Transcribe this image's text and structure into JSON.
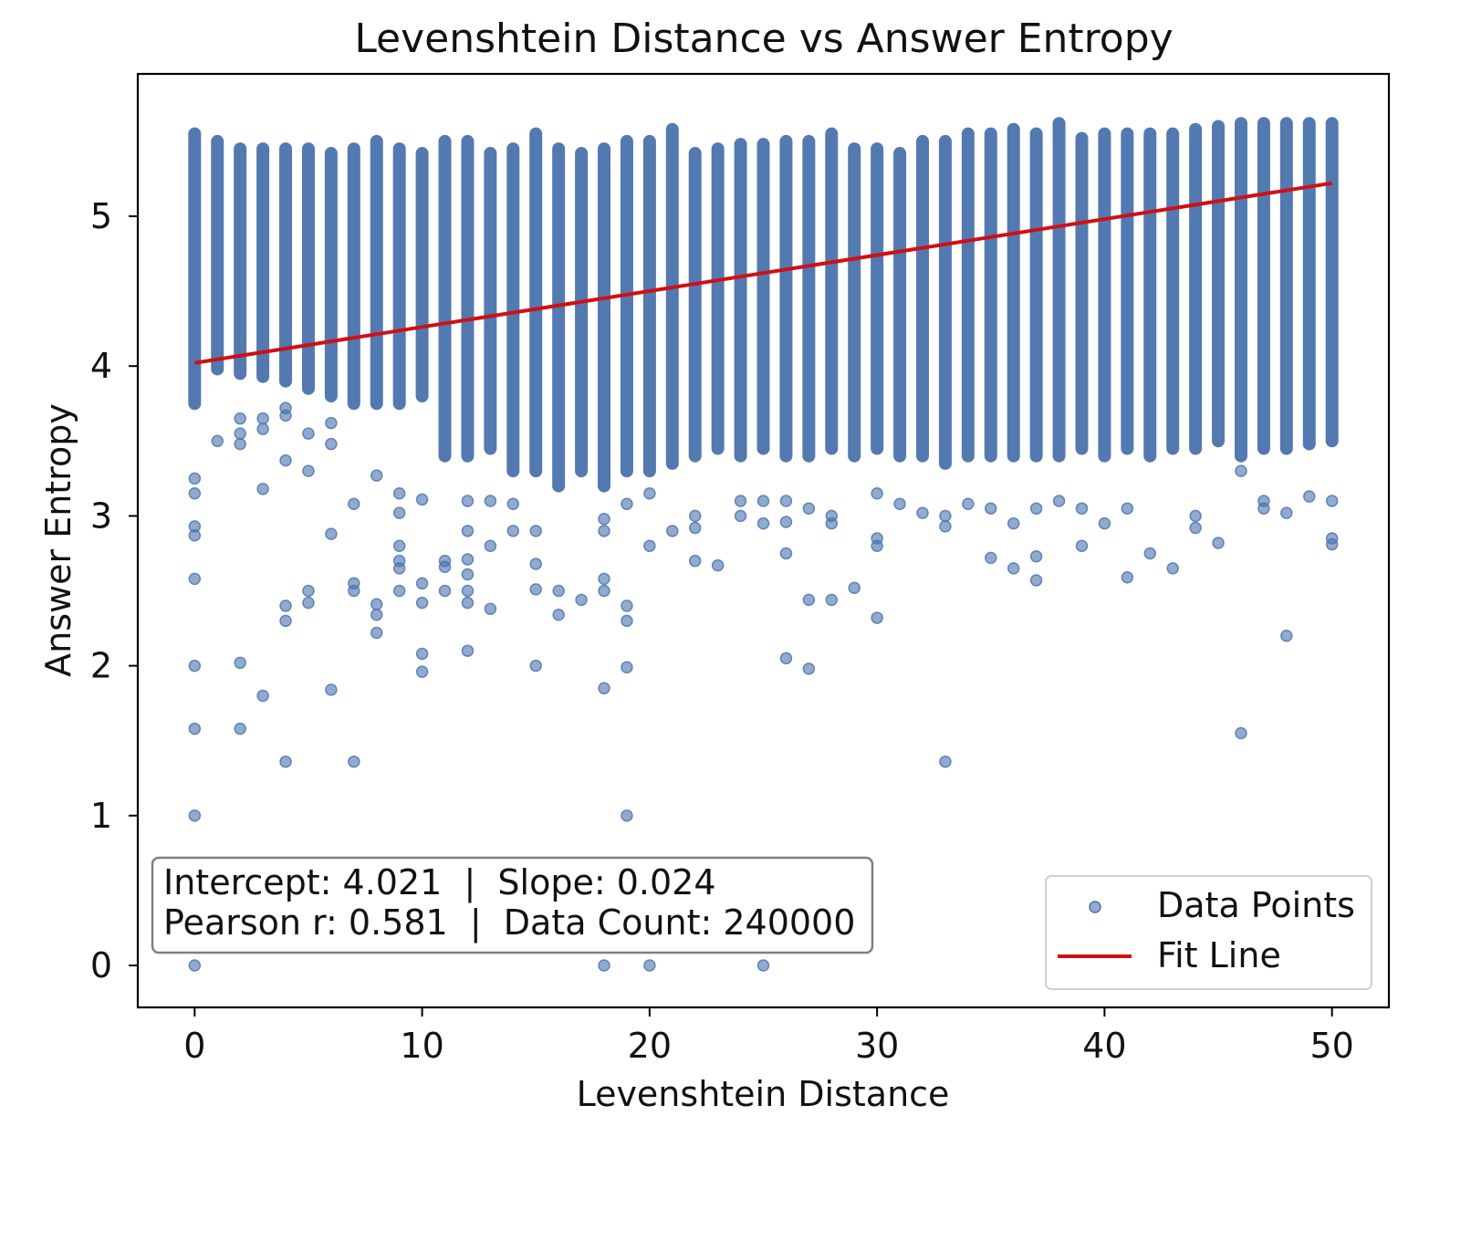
{
  "chart_data": {
    "type": "scatter",
    "title": "Levenshtein Distance vs Answer Entropy",
    "xlabel": "Levenshtein Distance",
    "ylabel": "Answer Entropy",
    "xlim": [
      -2.5,
      52.5
    ],
    "ylim": [
      -0.28,
      5.95
    ],
    "xticks": [
      0,
      10,
      20,
      30,
      40,
      50
    ],
    "yticks": [
      0,
      1,
      2,
      3,
      4,
      5
    ],
    "grid": false,
    "legend": {
      "placement": "bottom-right",
      "entries": [
        "Data Points",
        "Fit Line"
      ]
    },
    "annotation": {
      "line1": "Intercept: 4.021  |  Slope: 0.024",
      "line2": "Pearson r: 0.581  |  Data Count: 240000"
    },
    "fit_line": {
      "intercept": 4.021,
      "slope": 0.024,
      "x_range": [
        0,
        50
      ],
      "color": "#d10f12"
    },
    "point_color": "#4a72ad",
    "series": [
      {
        "name": "Data Points",
        "columns": [
          {
            "x": 0,
            "low": 3.75,
            "high": 5.55
          },
          {
            "x": 1,
            "low": 3.98,
            "high": 5.5
          },
          {
            "x": 2,
            "low": 3.95,
            "high": 5.45
          },
          {
            "x": 3,
            "low": 3.93,
            "high": 5.45
          },
          {
            "x": 4,
            "low": 3.9,
            "high": 5.45
          },
          {
            "x": 5,
            "low": 3.85,
            "high": 5.45
          },
          {
            "x": 6,
            "low": 3.8,
            "high": 5.42
          },
          {
            "x": 7,
            "low": 3.75,
            "high": 5.45
          },
          {
            "x": 8,
            "low": 3.75,
            "high": 5.5
          },
          {
            "x": 9,
            "low": 3.75,
            "high": 5.45
          },
          {
            "x": 10,
            "low": 3.8,
            "high": 5.42
          },
          {
            "x": 11,
            "low": 3.4,
            "high": 5.5
          },
          {
            "x": 12,
            "low": 3.4,
            "high": 5.5
          },
          {
            "x": 13,
            "low": 3.45,
            "high": 5.42
          },
          {
            "x": 14,
            "low": 3.3,
            "high": 5.45
          },
          {
            "x": 15,
            "low": 3.3,
            "high": 5.55
          },
          {
            "x": 16,
            "low": 3.2,
            "high": 5.45
          },
          {
            "x": 17,
            "low": 3.3,
            "high": 5.42
          },
          {
            "x": 18,
            "low": 3.2,
            "high": 5.45
          },
          {
            "x": 19,
            "low": 3.3,
            "high": 5.5
          },
          {
            "x": 20,
            "low": 3.3,
            "high": 5.5
          },
          {
            "x": 21,
            "low": 3.35,
            "high": 5.58
          },
          {
            "x": 22,
            "low": 3.4,
            "high": 5.42
          },
          {
            "x": 23,
            "low": 3.45,
            "high": 5.45
          },
          {
            "x": 24,
            "low": 3.4,
            "high": 5.48
          },
          {
            "x": 25,
            "low": 3.45,
            "high": 5.48
          },
          {
            "x": 26,
            "low": 3.4,
            "high": 5.5
          },
          {
            "x": 27,
            "low": 3.4,
            "high": 5.5
          },
          {
            "x": 28,
            "low": 3.45,
            "high": 5.55
          },
          {
            "x": 29,
            "low": 3.4,
            "high": 5.45
          },
          {
            "x": 30,
            "low": 3.45,
            "high": 5.45
          },
          {
            "x": 31,
            "low": 3.4,
            "high": 5.42
          },
          {
            "x": 32,
            "low": 3.4,
            "high": 5.5
          },
          {
            "x": 33,
            "low": 3.35,
            "high": 5.5
          },
          {
            "x": 34,
            "low": 3.4,
            "high": 5.55
          },
          {
            "x": 35,
            "low": 3.4,
            "high": 5.55
          },
          {
            "x": 36,
            "low": 3.4,
            "high": 5.58
          },
          {
            "x": 37,
            "low": 3.4,
            "high": 5.55
          },
          {
            "x": 38,
            "low": 3.4,
            "high": 5.62
          },
          {
            "x": 39,
            "low": 3.45,
            "high": 5.52
          },
          {
            "x": 40,
            "low": 3.4,
            "high": 5.55
          },
          {
            "x": 41,
            "low": 3.45,
            "high": 5.55
          },
          {
            "x": 42,
            "low": 3.4,
            "high": 5.55
          },
          {
            "x": 43,
            "low": 3.45,
            "high": 5.55
          },
          {
            "x": 44,
            "low": 3.45,
            "high": 5.58
          },
          {
            "x": 45,
            "low": 3.5,
            "high": 5.6
          },
          {
            "x": 46,
            "low": 3.4,
            "high": 5.62
          },
          {
            "x": 47,
            "low": 3.45,
            "high": 5.62
          },
          {
            "x": 48,
            "low": 3.45,
            "high": 5.62
          },
          {
            "x": 49,
            "low": 3.48,
            "high": 5.62
          },
          {
            "x": 50,
            "low": 3.5,
            "high": 5.62
          }
        ],
        "points": [
          [
            0,
            3.25
          ],
          [
            0,
            3.15
          ],
          [
            0,
            2.93
          ],
          [
            0,
            2.87
          ],
          [
            0,
            2.58
          ],
          [
            0,
            2.0
          ],
          [
            0,
            1.58
          ],
          [
            0,
            1.0
          ],
          [
            0,
            0.0
          ],
          [
            1,
            3.5
          ],
          [
            2,
            3.65
          ],
          [
            2,
            3.55
          ],
          [
            2,
            3.48
          ],
          [
            2,
            2.02
          ],
          [
            2,
            1.58
          ],
          [
            3,
            3.65
          ],
          [
            3,
            3.58
          ],
          [
            3,
            3.18
          ],
          [
            3,
            1.8
          ],
          [
            4,
            3.72
          ],
          [
            4,
            3.67
          ],
          [
            4,
            3.37
          ],
          [
            4,
            2.4
          ],
          [
            4,
            2.3
          ],
          [
            4,
            1.36
          ],
          [
            5,
            3.55
          ],
          [
            5,
            3.3
          ],
          [
            5,
            2.5
          ],
          [
            5,
            2.42
          ],
          [
            6,
            3.62
          ],
          [
            6,
            3.48
          ],
          [
            6,
            2.88
          ],
          [
            6,
            1.84
          ],
          [
            7,
            3.08
          ],
          [
            7,
            2.55
          ],
          [
            7,
            2.5
          ],
          [
            7,
            1.36
          ],
          [
            8,
            3.27
          ],
          [
            8,
            2.41
          ],
          [
            8,
            2.34
          ],
          [
            8,
            2.22
          ],
          [
            9,
            3.15
          ],
          [
            9,
            3.02
          ],
          [
            9,
            2.8
          ],
          [
            9,
            2.7
          ],
          [
            9,
            2.65
          ],
          [
            9,
            2.5
          ],
          [
            10,
            3.11
          ],
          [
            10,
            2.55
          ],
          [
            10,
            2.42
          ],
          [
            10,
            2.08
          ],
          [
            10,
            1.96
          ],
          [
            11,
            2.7
          ],
          [
            11,
            2.66
          ],
          [
            11,
            2.5
          ],
          [
            12,
            3.1
          ],
          [
            12,
            2.9
          ],
          [
            12,
            2.71
          ],
          [
            12,
            2.61
          ],
          [
            12,
            2.5
          ],
          [
            12,
            2.42
          ],
          [
            12,
            2.1
          ],
          [
            13,
            3.1
          ],
          [
            13,
            2.8
          ],
          [
            13,
            2.38
          ],
          [
            14,
            3.08
          ],
          [
            14,
            2.9
          ],
          [
            15,
            2.9
          ],
          [
            15,
            2.68
          ],
          [
            15,
            2.51
          ],
          [
            15,
            2.0
          ],
          [
            16,
            2.5
          ],
          [
            16,
            2.34
          ],
          [
            17,
            2.44
          ],
          [
            18,
            2.98
          ],
          [
            18,
            2.9
          ],
          [
            18,
            2.58
          ],
          [
            18,
            2.5
          ],
          [
            18,
            1.85
          ],
          [
            18,
            0.0
          ],
          [
            19,
            3.08
          ],
          [
            19,
            2.4
          ],
          [
            19,
            2.3
          ],
          [
            19,
            1.99
          ],
          [
            19,
            1.0
          ],
          [
            20,
            3.15
          ],
          [
            20,
            2.8
          ],
          [
            20,
            0.0
          ],
          [
            21,
            2.9
          ],
          [
            22,
            3.0
          ],
          [
            22,
            2.92
          ],
          [
            22,
            2.7
          ],
          [
            23,
            2.67
          ],
          [
            24,
            3.1
          ],
          [
            24,
            3.0
          ],
          [
            25,
            3.1
          ],
          [
            25,
            2.95
          ],
          [
            25,
            0.0
          ],
          [
            26,
            3.1
          ],
          [
            26,
            2.96
          ],
          [
            26,
            2.75
          ],
          [
            26,
            2.05
          ],
          [
            27,
            3.05
          ],
          [
            27,
            2.44
          ],
          [
            27,
            1.98
          ],
          [
            28,
            3.0
          ],
          [
            28,
            2.95
          ],
          [
            28,
            2.44
          ],
          [
            29,
            2.52
          ],
          [
            30,
            3.15
          ],
          [
            30,
            2.85
          ],
          [
            30,
            2.8
          ],
          [
            30,
            2.32
          ],
          [
            31,
            3.08
          ],
          [
            32,
            3.02
          ],
          [
            33,
            3.0
          ],
          [
            33,
            2.93
          ],
          [
            33,
            1.36
          ],
          [
            34,
            3.08
          ],
          [
            35,
            3.05
          ],
          [
            35,
            2.72
          ],
          [
            36,
            2.95
          ],
          [
            36,
            2.65
          ],
          [
            37,
            3.05
          ],
          [
            37,
            2.73
          ],
          [
            37,
            2.57
          ],
          [
            38,
            3.1
          ],
          [
            39,
            3.05
          ],
          [
            39,
            2.8
          ],
          [
            40,
            2.95
          ],
          [
            41,
            3.05
          ],
          [
            41,
            2.59
          ],
          [
            42,
            2.75
          ],
          [
            43,
            2.65
          ],
          [
            44,
            3.0
          ],
          [
            44,
            2.92
          ],
          [
            45,
            2.82
          ],
          [
            46,
            3.3
          ],
          [
            46,
            1.55
          ],
          [
            47,
            3.1
          ],
          [
            47,
            3.05
          ],
          [
            48,
            3.02
          ],
          [
            48,
            2.2
          ],
          [
            49,
            3.13
          ],
          [
            50,
            3.1
          ],
          [
            50,
            2.85
          ],
          [
            50,
            2.81
          ]
        ]
      },
      {
        "name": "Fit Line"
      }
    ]
  }
}
